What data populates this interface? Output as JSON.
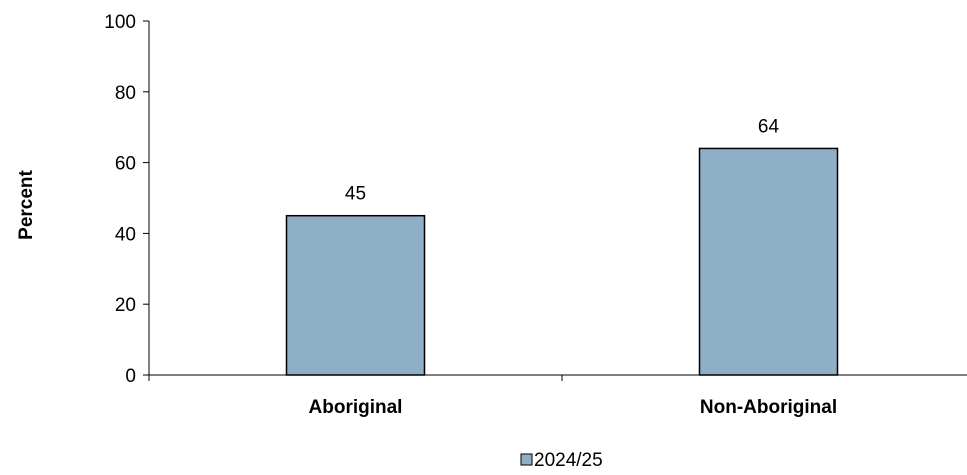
{
  "chart_data": {
    "type": "bar",
    "categories": [
      "Aboriginal",
      "Non-Aboriginal"
    ],
    "series": [
      {
        "name": "2024/25",
        "values": [
          45,
          64
        ],
        "color": "#8eafc6"
      }
    ],
    "data_labels": [
      "45",
      "64"
    ],
    "title": "",
    "xlabel": "",
    "ylabel": "Percent",
    "ylim": [
      0,
      100
    ],
    "yticks": [
      0,
      20,
      40,
      60,
      80,
      100
    ],
    "ytick_labels": [
      "0",
      "20",
      "40",
      "60",
      "80",
      "100"
    ],
    "grid": false,
    "legend_position": "bottom-center",
    "legend_marker": "■"
  }
}
